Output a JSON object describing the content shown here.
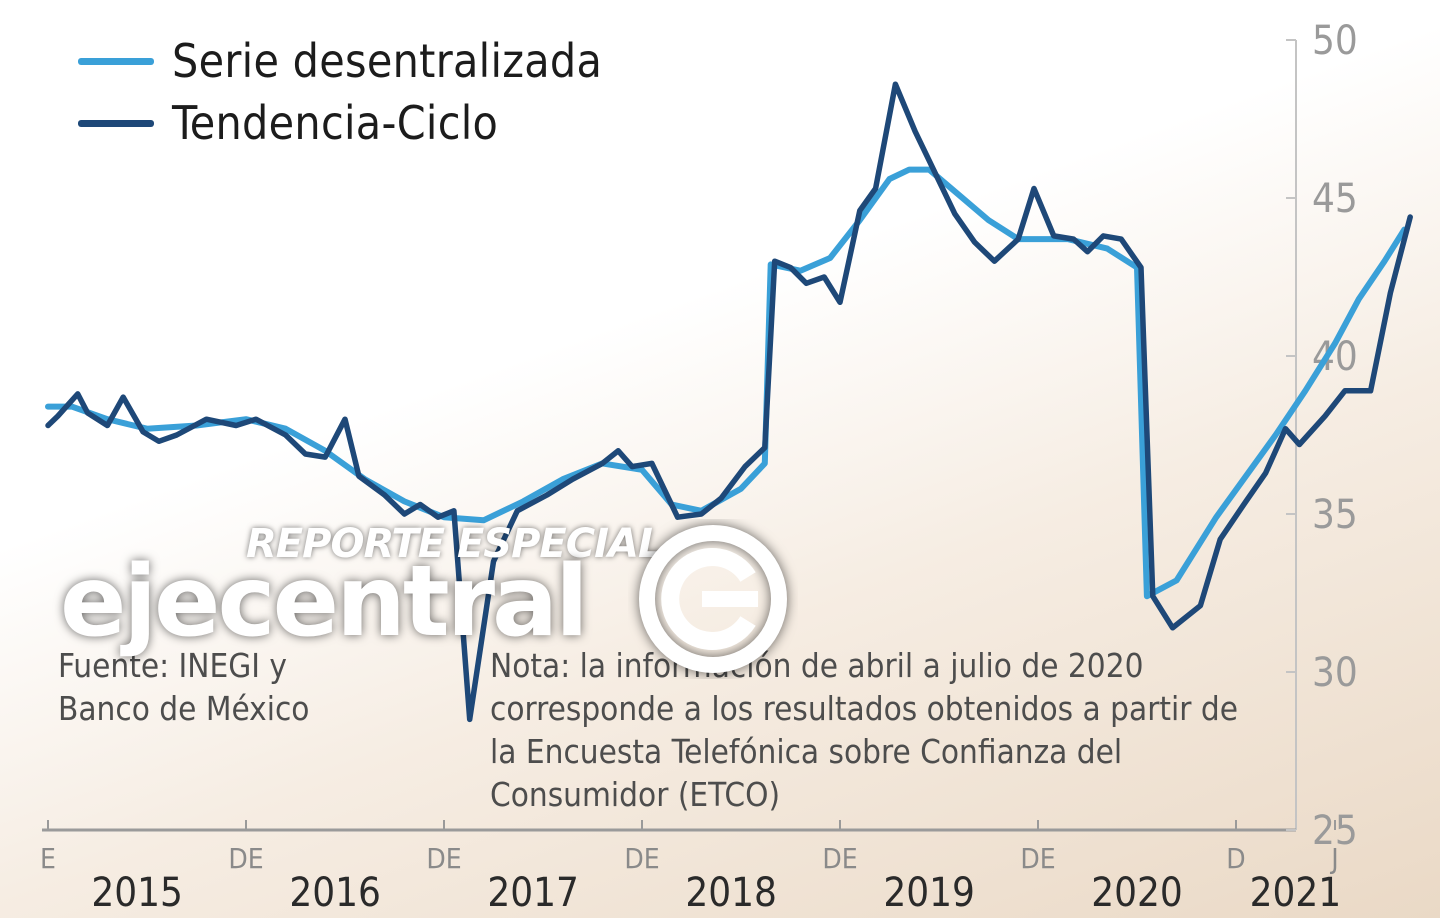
{
  "chart_data": {
    "type": "line",
    "ylim": [
      25,
      50
    ],
    "yticks": [
      25,
      30,
      35,
      40,
      45,
      50
    ],
    "ytick_labels": [
      "25",
      "30",
      "35",
      "40",
      "45",
      "50"
    ],
    "month_labels": [
      {
        "label": "E",
        "x": 2015.0
      },
      {
        "label": "DE",
        "x": 2016.0
      },
      {
        "label": "DE",
        "x": 2017.0
      },
      {
        "label": "DE",
        "x": 2018.0
      },
      {
        "label": "DE",
        "x": 2019.0
      },
      {
        "label": "DE",
        "x": 2020.0
      },
      {
        "label": "D",
        "x": 2021.0
      },
      {
        "label": "J",
        "x": 2021.5
      }
    ],
    "year_labels": [
      {
        "label": "2015",
        "x": 2015.45
      },
      {
        "label": "2016",
        "x": 2016.45
      },
      {
        "label": "2017",
        "x": 2017.45
      },
      {
        "label": "2018",
        "x": 2018.45
      },
      {
        "label": "2019",
        "x": 2019.45
      },
      {
        "label": "2020",
        "x": 2020.5
      },
      {
        "label": "2021",
        "x": 2021.3
      }
    ],
    "legend_position": "top-left",
    "series": [
      {
        "name": "Serie desentralizada",
        "color": "#3aa0d8",
        "points": [
          [
            2015.0,
            38.4
          ],
          [
            2015.12,
            38.4
          ],
          [
            2015.3,
            38.0
          ],
          [
            2015.5,
            37.7
          ],
          [
            2015.75,
            37.8
          ],
          [
            2016.0,
            38.0
          ],
          [
            2016.2,
            37.7
          ],
          [
            2016.4,
            37.0
          ],
          [
            2016.6,
            36.1
          ],
          [
            2016.8,
            35.4
          ],
          [
            2017.0,
            34.9
          ],
          [
            2017.2,
            34.8
          ],
          [
            2017.4,
            35.4
          ],
          [
            2017.6,
            36.1
          ],
          [
            2017.8,
            36.6
          ],
          [
            2018.0,
            36.4
          ],
          [
            2018.15,
            35.3
          ],
          [
            2018.3,
            35.1
          ],
          [
            2018.5,
            35.8
          ],
          [
            2018.62,
            36.6
          ],
          [
            2018.65,
            42.9
          ],
          [
            2018.8,
            42.7
          ],
          [
            2018.95,
            43.1
          ],
          [
            2019.1,
            44.3
          ],
          [
            2019.25,
            45.6
          ],
          [
            2019.35,
            45.9
          ],
          [
            2019.45,
            45.9
          ],
          [
            2019.6,
            45.1
          ],
          [
            2019.75,
            44.3
          ],
          [
            2019.9,
            43.7
          ],
          [
            2020.0,
            43.7
          ],
          [
            2020.15,
            43.7
          ],
          [
            2020.35,
            43.4
          ],
          [
            2020.5,
            42.8
          ],
          [
            2020.55,
            32.4
          ],
          [
            2020.7,
            32.9
          ],
          [
            2020.8,
            33.9
          ],
          [
            2020.9,
            34.9
          ],
          [
            2021.05,
            36.2
          ],
          [
            2021.2,
            37.5
          ],
          [
            2021.35,
            38.9
          ],
          [
            2021.5,
            40.4
          ],
          [
            2021.62,
            41.8
          ],
          [
            2021.75,
            43.0
          ],
          [
            2021.85,
            44.0
          ]
        ]
      },
      {
        "name": "Tendencia-Ciclo",
        "color": "#1e4878",
        "points": [
          [
            2015.0,
            37.8
          ],
          [
            2015.05,
            38.1
          ],
          [
            2015.15,
            38.8
          ],
          [
            2015.2,
            38.2
          ],
          [
            2015.3,
            37.8
          ],
          [
            2015.38,
            38.7
          ],
          [
            2015.48,
            37.6
          ],
          [
            2015.56,
            37.3
          ],
          [
            2015.65,
            37.5
          ],
          [
            2015.8,
            38.0
          ],
          [
            2015.95,
            37.8
          ],
          [
            2016.05,
            38.0
          ],
          [
            2016.2,
            37.5
          ],
          [
            2016.3,
            36.9
          ],
          [
            2016.4,
            36.8
          ],
          [
            2016.5,
            38.0
          ],
          [
            2016.57,
            36.2
          ],
          [
            2016.7,
            35.6
          ],
          [
            2016.8,
            35.0
          ],
          [
            2016.88,
            35.3
          ],
          [
            2016.97,
            34.9
          ],
          [
            2017.05,
            35.1
          ],
          [
            2017.13,
            28.5
          ],
          [
            2017.25,
            33.5
          ],
          [
            2017.37,
            35.1
          ],
          [
            2017.52,
            35.6
          ],
          [
            2017.65,
            36.1
          ],
          [
            2017.8,
            36.6
          ],
          [
            2017.88,
            37.0
          ],
          [
            2017.95,
            36.5
          ],
          [
            2018.05,
            36.6
          ],
          [
            2018.18,
            34.9
          ],
          [
            2018.3,
            35.0
          ],
          [
            2018.4,
            35.5
          ],
          [
            2018.52,
            36.5
          ],
          [
            2018.62,
            37.1
          ],
          [
            2018.67,
            43.0
          ],
          [
            2018.75,
            42.8
          ],
          [
            2018.83,
            42.3
          ],
          [
            2018.92,
            42.5
          ],
          [
            2019.0,
            41.7
          ],
          [
            2019.1,
            44.6
          ],
          [
            2019.18,
            45.3
          ],
          [
            2019.28,
            48.6
          ],
          [
            2019.38,
            47.1
          ],
          [
            2019.48,
            45.8
          ],
          [
            2019.58,
            44.5
          ],
          [
            2019.68,
            43.6
          ],
          [
            2019.78,
            43.0
          ],
          [
            2019.9,
            43.7
          ],
          [
            2019.98,
            45.3
          ],
          [
            2020.08,
            43.8
          ],
          [
            2020.18,
            43.7
          ],
          [
            2020.25,
            43.3
          ],
          [
            2020.33,
            43.8
          ],
          [
            2020.42,
            43.7
          ],
          [
            2020.52,
            42.8
          ],
          [
            2020.58,
            32.4
          ],
          [
            2020.68,
            31.4
          ],
          [
            2020.82,
            32.1
          ],
          [
            2020.92,
            34.2
          ],
          [
            2021.05,
            35.4
          ],
          [
            2021.15,
            36.3
          ],
          [
            2021.25,
            37.7
          ],
          [
            2021.32,
            37.2
          ],
          [
            2021.45,
            38.1
          ],
          [
            2021.55,
            38.9
          ],
          [
            2021.68,
            38.9
          ],
          [
            2021.78,
            42.0
          ],
          [
            2021.88,
            44.4
          ]
        ]
      }
    ]
  },
  "source_text": "Fuente: INEGI y Banco de México",
  "note_text": "Nota: la información de abril a julio de 2020 corresponde a los resultados obtenidos a partir de la Encuesta Telefónica sobre Confianza del Consumidor (ETCO)",
  "watermark": {
    "top": "REPORTE ESPECIAL",
    "main": "ejecentral"
  }
}
